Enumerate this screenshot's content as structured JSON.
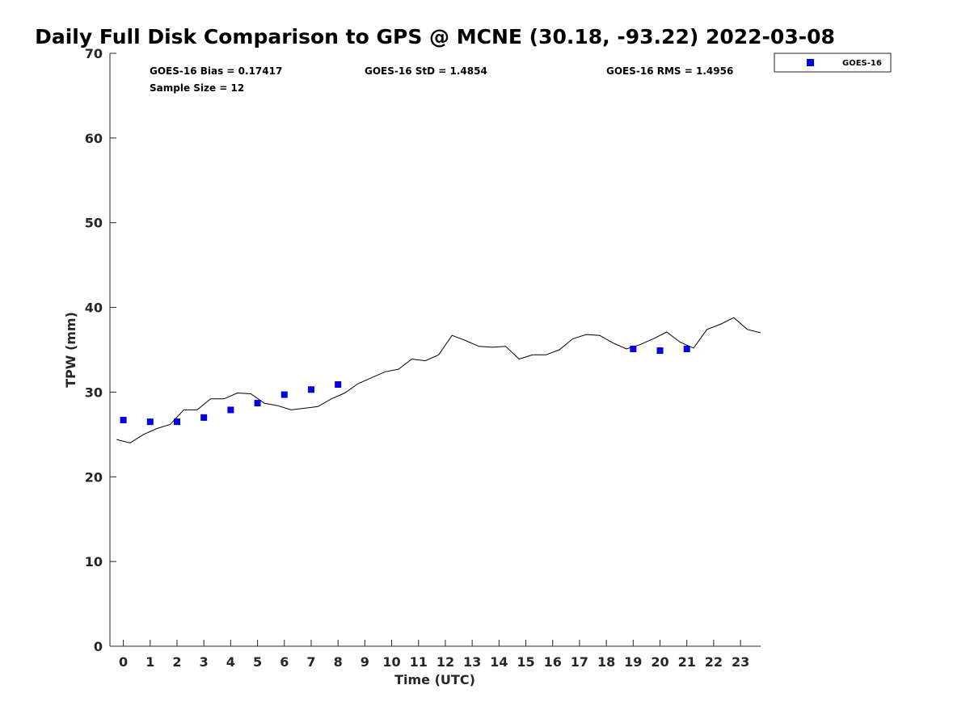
{
  "colors": {
    "series_marker": "#0000e0",
    "line": "#000000",
    "axis": "#262626"
  },
  "stats": {
    "bias": "GOES-16 Bias = 0.17417",
    "std": "GOES-16 StD = 1.4854",
    "rms": "GOES-16 RMS = 1.4956",
    "sample": "Sample Size = 12"
  },
  "chart_data": {
    "type": "scatter",
    "title": "Daily Full Disk Comparison to GPS @ MCNE (30.18, -93.22) 2022-03-08",
    "xlabel": "Time (UTC)",
    "ylabel": "TPW (mm)",
    "xlim": [
      -0.5,
      23.75
    ],
    "ylim": [
      0,
      70
    ],
    "x_ticks": [
      0,
      1,
      2,
      3,
      4,
      5,
      6,
      7,
      8,
      9,
      10,
      11,
      12,
      13,
      14,
      15,
      16,
      17,
      18,
      19,
      20,
      21,
      22,
      23
    ],
    "y_ticks": [
      0,
      10,
      20,
      30,
      40,
      50,
      60,
      70
    ],
    "grid": false,
    "legend_position": "outside-top-right",
    "series": [
      {
        "name": "GOES-16",
        "marker": "square",
        "x": [
          0,
          1,
          2,
          3,
          4,
          5,
          6,
          7,
          8,
          19,
          20,
          21
        ],
        "y": [
          26.7,
          26.5,
          26.5,
          27.0,
          27.9,
          28.7,
          29.7,
          30.3,
          30.9,
          35.1,
          34.9,
          35.1
        ]
      },
      {
        "style": "line",
        "x": [
          -0.25,
          0.25,
          0.75,
          1.25,
          1.75,
          2.25,
          2.75,
          3.25,
          3.75,
          4.25,
          4.75,
          5.25,
          5.75,
          6.25,
          6.75,
          7.25,
          7.75,
          8.25,
          8.75,
          9.25,
          9.75,
          10.25,
          10.75,
          11.25,
          11.75,
          12.25,
          12.75,
          13.25,
          13.75,
          14.25,
          14.75,
          15.25,
          15.75,
          16.25,
          16.75,
          17.25,
          17.75,
          18.25,
          18.75,
          19.25,
          19.75,
          20.25,
          20.75,
          21.25,
          21.75,
          22.25,
          22.75,
          23.25,
          23.75
        ],
        "y": [
          24.4,
          24.0,
          25.0,
          25.7,
          26.2,
          27.9,
          27.9,
          29.2,
          29.2,
          29.9,
          29.8,
          28.7,
          28.4,
          27.9,
          28.1,
          28.3,
          29.2,
          29.9,
          31.0,
          31.7,
          32.4,
          32.7,
          33.9,
          33.7,
          34.4,
          36.7,
          36.1,
          35.4,
          35.3,
          35.4,
          33.9,
          34.4,
          34.4,
          35.0,
          36.3,
          36.8,
          36.7,
          35.8,
          35.1,
          35.6,
          36.3,
          37.1,
          35.9,
          35.2,
          37.4,
          38.0,
          38.8,
          37.4,
          37.0
        ]
      }
    ]
  }
}
